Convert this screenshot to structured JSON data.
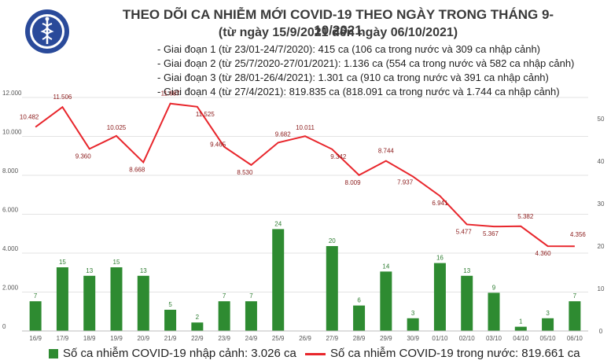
{
  "header": {
    "title": "THEO DÕI CA NHIỄM MỚI COVID-19 THEO NGÀY TRONG THÁNG 9-10/2021",
    "subtitle": "(từ ngày 15/9/2021 đến ngày 06/10/2021)",
    "phases": [
      "- Giai đoạn 1 (từ 23/01-24/7/2020): 415 ca (106 ca trong nước và 309 ca nhập cảnh)",
      "- Giai đoạn 2 (từ 25/7/2020-27/01/2021): 1.136 ca (554 ca trong nước và 582 ca nhập cảnh)",
      "- Giai đoạn 3 (từ 28/01-26/4/2021): 1.301 ca (910 ca trong nước và 391 ca nhập cảnh)",
      "- Giai đoạn 4 (từ 27/4/2021): 819.835 ca (818.091 ca trong nước và 1.744 ca nhập cảnh)"
    ]
  },
  "logo": {
    "text": "BỘ Y TẾ",
    "ring_text": "MINISTRY OF HEALTH",
    "icon": "caduceus-icon"
  },
  "colors": {
    "bar": "#2e8b31",
    "line": "#e8262c",
    "grid": "#e3e3e3"
  },
  "legend": {
    "bar_label": "Số ca nhiễm COVID-19 nhập cảnh: 3.026 ca",
    "line_label": "Số ca nhiễm COVID-19 trong nước: 819.661 ca"
  },
  "chart_data": {
    "type": "bar+line",
    "categories": [
      "16/9",
      "17/9",
      "18/9",
      "19/9",
      "20/9",
      "21/9",
      "22/9",
      "23/9",
      "24/9",
      "25/9",
      "26/9",
      "27/9",
      "28/9",
      "29/9",
      "30/9",
      "01/10",
      "02/10",
      "03/10",
      "04/10",
      "05/10",
      "06/10"
    ],
    "series": [
      {
        "name": "Số ca nhiễm COVID-19 trong nước: 819.661 ca",
        "type": "line",
        "axis": "left",
        "values": [
          10482,
          11506,
          9360,
          10025,
          8668,
          11687,
          11525,
          9465,
          8530,
          9682,
          10011,
          9342,
          8009,
          8744,
          7937,
          6941,
          5477,
          5367,
          5382,
          4360,
          4356
        ],
        "labels": [
          "10.482",
          "11.506",
          "9.360",
          "10.025",
          "8.668",
          "11.687",
          "11.525",
          "9.465",
          "8.530",
          "9.682",
          "10.011",
          "9.342",
          "8.009",
          "8.744",
          "7.937",
          "6.941",
          "5.477",
          "5.367",
          "5.382",
          "4.360",
          "4.356"
        ]
      },
      {
        "name": "Số ca nhiễm COVID-19 nhập cảnh: 3.026 ca",
        "type": "bar",
        "axis": "right",
        "values": [
          7,
          15,
          13,
          15,
          13,
          5,
          2,
          7,
          7,
          24,
          0,
          20,
          6,
          14,
          3,
          16,
          13,
          9,
          1,
          3,
          7
        ],
        "labels": [
          "7",
          "15",
          "13",
          "15",
          "13",
          "5",
          "2",
          "7",
          "7",
          "24",
          "",
          "20",
          "6",
          "14",
          "3",
          "16",
          "13",
          "9",
          "1",
          "3",
          "7"
        ]
      }
    ],
    "y_left": {
      "min": 0,
      "max": 12000,
      "ticks": [
        0,
        2000,
        4000,
        6000,
        8000,
        10000,
        12000
      ],
      "tick_labels": [
        "0",
        "2.000",
        "4.000",
        "6.000",
        "8.000",
        "10.000",
        "12.000"
      ]
    },
    "y_right": {
      "min": 0,
      "max": 55,
      "ticks": [
        0,
        10,
        20,
        30,
        40,
        50
      ],
      "tick_labels": [
        "0",
        "10",
        "20",
        "30",
        "40",
        "50"
      ]
    },
    "grid": true,
    "legend_position": "bottom"
  }
}
